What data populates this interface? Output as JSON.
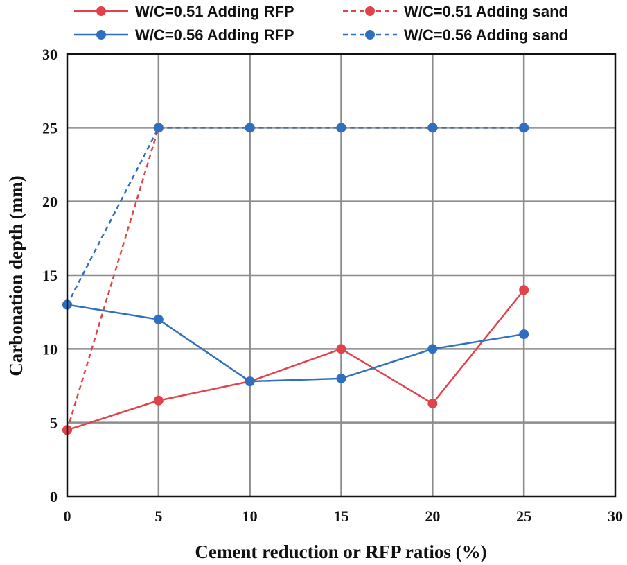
{
  "chart_data": {
    "type": "line",
    "title": "",
    "xlabel": "Cement reduction or RFP ratios (%)",
    "ylabel": "Carbonation depth (mm)",
    "xlim": [
      0,
      30
    ],
    "ylim": [
      0,
      30
    ],
    "xticks": [
      0,
      5,
      10,
      15,
      20,
      25,
      30
    ],
    "yticks": [
      0,
      5,
      10,
      15,
      20,
      25,
      30
    ],
    "grid": true,
    "legend_position": "top",
    "series": [
      {
        "name": "W/C=0.51 Adding RFP",
        "color": "#e0434a",
        "style": "solid",
        "x": [
          0,
          5,
          10,
          15,
          20,
          25
        ],
        "y": [
          4.5,
          6.5,
          7.8,
          10,
          6.3,
          14
        ]
      },
      {
        "name": "W/C=0.51 Adding sand",
        "color": "#e0434a",
        "style": "dashed",
        "x": [
          0,
          5,
          10,
          15,
          20,
          25
        ],
        "y": [
          4.5,
          25,
          25,
          25,
          25,
          25
        ]
      },
      {
        "name": "W/C=0.56 Adding RFP",
        "color": "#2f6fbf",
        "style": "solid",
        "x": [
          0,
          5,
          10,
          15,
          20,
          25
        ],
        "y": [
          13,
          12,
          7.8,
          8,
          10,
          11
        ]
      },
      {
        "name": "W/C=0.56 Adding sand",
        "color": "#2f6fbf",
        "style": "dashed",
        "x": [
          0,
          5,
          10,
          15,
          20,
          25
        ],
        "y": [
          13,
          25,
          25,
          25,
          25,
          25
        ]
      }
    ]
  }
}
